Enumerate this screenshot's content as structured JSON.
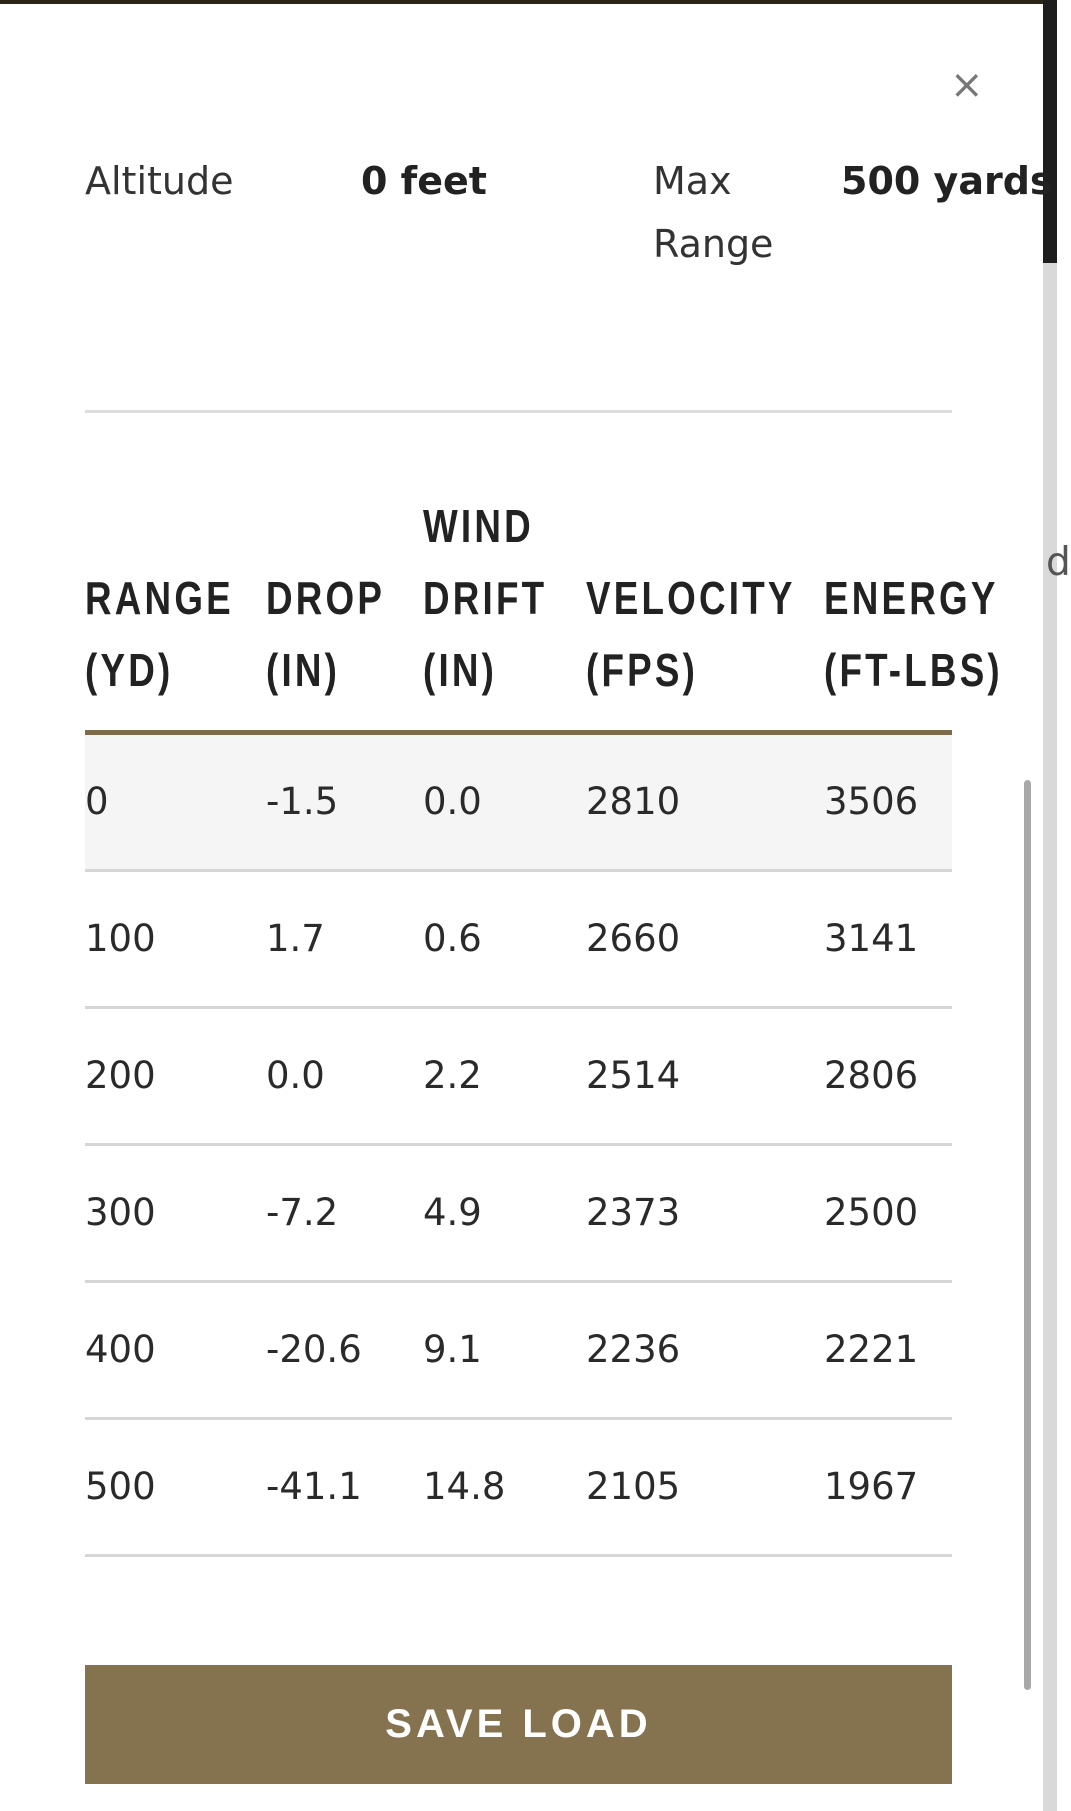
{
  "background_fragment": "d",
  "modal": {
    "close": "×",
    "info": [
      {
        "label": [
          "Altitude"
        ],
        "value": "0 feet"
      },
      {
        "label": [
          "Max",
          "Range"
        ],
        "value": "500 yards"
      }
    ],
    "table": {
      "headers": [
        [
          "RANGE",
          "(YD)"
        ],
        [
          "DROP",
          "(IN)"
        ],
        [
          "WIND",
          "DRIFT",
          "(IN)"
        ],
        [
          "VELOCITY",
          "(FPS)"
        ],
        [
          "ENERGY",
          "(FT-LBS)"
        ]
      ],
      "rows": [
        [
          "0",
          "-1.5",
          "0.0",
          "2810",
          "3506"
        ],
        [
          "100",
          "1.7",
          "0.6",
          "2660",
          "3141"
        ],
        [
          "200",
          "0.0",
          "2.2",
          "2514",
          "2806"
        ],
        [
          "300",
          "-7.2",
          "4.9",
          "2373",
          "2500"
        ],
        [
          "400",
          "-20.6",
          "9.1",
          "2236",
          "2221"
        ],
        [
          "500",
          "-41.1",
          "14.8",
          "2105",
          "1967"
        ]
      ]
    },
    "button": "SAVE LOAD"
  }
}
